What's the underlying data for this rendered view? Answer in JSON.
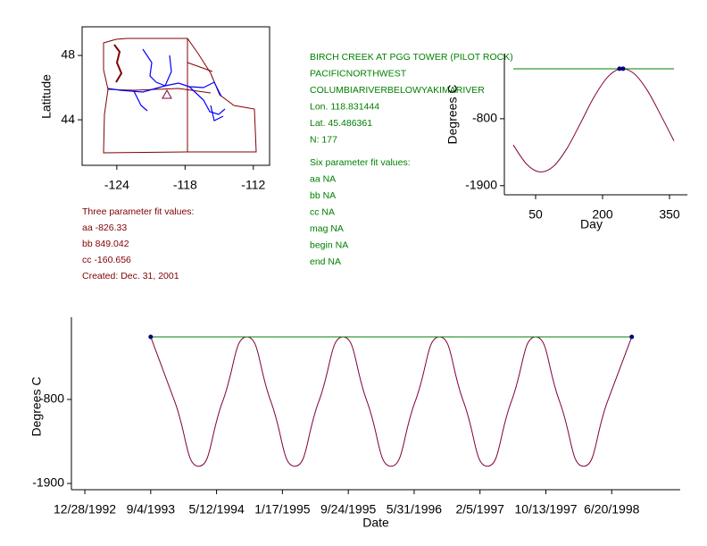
{
  "chart_data": [
    {
      "type": "map",
      "ylabel": "Latitude",
      "xlim": [
        -127.05,
        -110.57
      ],
      "ylim": [
        41.17,
        49.78
      ],
      "xticks": [
        -124,
        -118,
        -112
      ],
      "yticks": [
        48,
        44
      ]
    },
    {
      "type": "line",
      "xlabel": "Day",
      "ylabel": "Degrees C",
      "xlim": [
        -20,
        390
      ],
      "ylim": [
        -2050,
        270
      ],
      "xticks": [
        50,
        200,
        350
      ],
      "yticks": [
        -800,
        -1900
      ],
      "series": [
        {
          "color": "#800040",
          "x": [
            0,
            30,
            60,
            90,
            120,
            150,
            180,
            210,
            240,
            270,
            300,
            330,
            360
          ],
          "values": [
            -1231,
            -1547,
            -1674,
            -1582,
            -1291,
            -881,
            -455,
            -127,
            20,
            -55,
            -331,
            -735,
            -1164
          ]
        },
        {
          "color": "#008000",
          "x": [
            0,
            360
          ],
          "values": [
            20,
            20
          ]
        },
        {
          "color": "#000080",
          "markers": true,
          "x": [
            238,
            246
          ],
          "values": [
            22,
            22
          ]
        }
      ]
    },
    {
      "type": "line",
      "xlabel": "Date",
      "ylabel": "Degrees C",
      "xlim": [
        "1992-11-07",
        "1999-03-07"
      ],
      "ylim": [
        -1982,
        277
      ],
      "xticks": [
        {
          "value": "1992-12-28",
          "label": "12/28/1992"
        },
        {
          "value": "1993-09-04",
          "label": "9/4/1993"
        },
        {
          "value": "1994-05-12",
          "label": "5/12/1994"
        },
        {
          "value": "1995-01-17",
          "label": "1/17/1995"
        },
        {
          "value": "1995-09-24",
          "label": "9/24/1995"
        },
        {
          "value": "1996-05-31",
          "label": "5/31/1996"
        },
        {
          "value": "1997-02-05",
          "label": "2/5/1997"
        },
        {
          "value": "1997-10-13",
          "label": "10/13/1997"
        },
        {
          "value": "1998-06-20",
          "label": "6/20/1998"
        }
      ],
      "yticks": [
        -800,
        -1900
      ],
      "series": [
        {
          "color": "#800040",
          "x": [
            "1993-09-04",
            "1993-12-04",
            "1994-03-05",
            "1994-06-04",
            "1994-09-04",
            "1994-12-04",
            "1995-03-05",
            "1995-06-04",
            "1995-09-04",
            "1995-12-04",
            "1996-03-04",
            "1996-06-04",
            "1996-09-04",
            "1996-12-04",
            "1997-03-05",
            "1997-06-04",
            "1997-09-04",
            "1997-12-04",
            "1998-03-05",
            "1998-06-04",
            "1998-09-04"
          ],
          "values": [
            20,
            -826,
            -1675,
            -826,
            20,
            -826,
            -1675,
            -826,
            20,
            -826,
            -1675,
            -826,
            20,
            -826,
            -1675,
            -826,
            20,
            -826,
            -1675,
            -826,
            20
          ]
        },
        {
          "color": "#008000",
          "x": [
            "1993-09-04",
            "1998-09-04"
          ],
          "values": [
            20,
            20
          ]
        },
        {
          "color": "#000080",
          "markers": true,
          "x": [
            "1993-09-04",
            "1998-09-04"
          ],
          "values": [
            20,
            20
          ]
        }
      ]
    }
  ],
  "three_param": [
    "Three parameter fit values:",
    "aa -826.33",
    "bb 849.042",
    "cc -160.656",
    "Created:   Dec. 31, 2001"
  ],
  "site_info": [
    "BIRCH CREEK AT PGG TOWER (PILOT ROCK)",
    "PACIFICNORTHWEST",
    "COLUMBIARIVERBELOWYAKIMARIVER",
    "Lon. 118.831444",
    "Lat. 45.486361",
    "N: 177"
  ],
  "six_param": [
    "Six parameter fit values:",
    "aa NA",
    "bb NA",
    "cc NA",
    "mag NA",
    "begin NA",
    "end NA"
  ]
}
